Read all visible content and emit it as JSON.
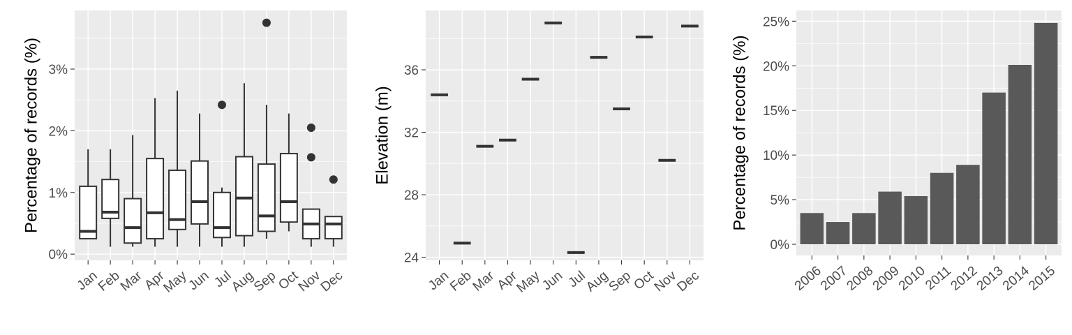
{
  "figure": {
    "background": "#ffffff",
    "panel_background": "#ebebeb",
    "grid_color": "#ffffff"
  },
  "chart_data": [
    {
      "id": "monthly-boxplot",
      "type": "box",
      "title": "",
      "xlabel": "",
      "ylabel": "Percentage of records (%)",
      "ylim": [
        -0.1,
        3.95
      ],
      "yticks": [
        0,
        1,
        2,
        3
      ],
      "ytick_labels": [
        "0%",
        "1%",
        "2%",
        "3%"
      ],
      "categories": [
        "Jan",
        "Feb",
        "Mar",
        "Apr",
        "May",
        "Jun",
        "Jul",
        "Aug",
        "Sep",
        "Oct",
        "Nov",
        "Dec"
      ],
      "box_color": "#333333",
      "box_fill": "#ffffff",
      "boxes": [
        {
          "min": 0.25,
          "q1": 0.25,
          "median": 0.37,
          "q3": 1.1,
          "max": 1.7,
          "outliers": []
        },
        {
          "min": 0.12,
          "q1": 0.58,
          "median": 0.68,
          "q3": 1.21,
          "max": 1.7,
          "outliers": []
        },
        {
          "min": 0.12,
          "q1": 0.18,
          "median": 0.43,
          "q3": 0.9,
          "max": 1.93,
          "outliers": []
        },
        {
          "min": 0.12,
          "q1": 0.25,
          "median": 0.67,
          "q3": 1.55,
          "max": 2.53,
          "outliers": []
        },
        {
          "min": 0.12,
          "q1": 0.4,
          "median": 0.56,
          "q3": 1.36,
          "max": 2.65,
          "outliers": []
        },
        {
          "min": 0.12,
          "q1": 0.49,
          "median": 0.85,
          "q3": 1.51,
          "max": 2.28,
          "outliers": []
        },
        {
          "min": 0.12,
          "q1": 0.27,
          "median": 0.43,
          "q3": 1.0,
          "max": 1.08,
          "outliers": [
            2.42
          ]
        },
        {
          "min": 0.12,
          "q1": 0.3,
          "median": 0.91,
          "q3": 1.58,
          "max": 2.77,
          "outliers": []
        },
        {
          "min": 0.25,
          "q1": 0.37,
          "median": 0.62,
          "q3": 1.46,
          "max": 2.42,
          "outliers": [
            3.75
          ]
        },
        {
          "min": 0.37,
          "q1": 0.52,
          "median": 0.85,
          "q3": 1.63,
          "max": 2.28,
          "outliers": []
        },
        {
          "min": 0.12,
          "q1": 0.25,
          "median": 0.49,
          "q3": 0.73,
          "max": 0.73,
          "outliers": [
            1.57,
            2.05
          ]
        },
        {
          "min": 0.12,
          "q1": 0.25,
          "median": 0.49,
          "q3": 0.61,
          "max": 0.61,
          "outliers": [
            1.21
          ]
        }
      ]
    },
    {
      "id": "monthly-elevation",
      "type": "scatter",
      "title": "",
      "xlabel": "",
      "ylabel": "Elevation (m)",
      "ylim": [
        23.8,
        39.8
      ],
      "yticks": [
        24,
        28,
        32,
        36
      ],
      "ytick_labels": [
        "24",
        "28",
        "32",
        "36"
      ],
      "categories": [
        "Jan",
        "Feb",
        "Mar",
        "Apr",
        "May",
        "Jun",
        "Jul",
        "Aug",
        "Sep",
        "Oct",
        "Nov",
        "Dec"
      ],
      "values": [
        34.4,
        24.9,
        31.1,
        31.5,
        35.4,
        39.0,
        24.3,
        36.8,
        33.5,
        38.1,
        30.2,
        38.8
      ],
      "mark_color": "#333333"
    },
    {
      "id": "yearly-bars",
      "type": "bar",
      "title": "",
      "xlabel": "",
      "ylabel": "Percentage of records (%)",
      "ylim": [
        -1.25,
        26.2
      ],
      "yticks": [
        0,
        5,
        10,
        15,
        20,
        25
      ],
      "ytick_labels": [
        "0%",
        "5%",
        "10%",
        "15%",
        "20%",
        "25%"
      ],
      "categories": [
        "2006",
        "2007",
        "2008",
        "2009",
        "2010",
        "2011",
        "2012",
        "2013",
        "2014",
        "2015"
      ],
      "values": [
        3.5,
        2.5,
        3.5,
        5.9,
        5.4,
        8.0,
        8.9,
        17.0,
        20.1,
        24.8
      ],
      "bar_color": "#595959"
    }
  ]
}
